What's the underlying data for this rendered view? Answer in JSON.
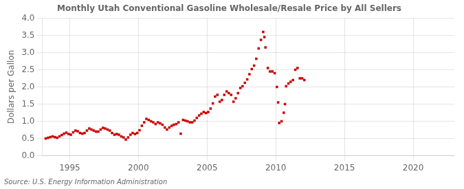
{
  "chart_data": {
    "type": "scatter",
    "title": "Monthly Utah Conventional Gasoline Wholesale/Resale Price by All Sellers",
    "ylabel": "Dollars per Gallon",
    "annotations": [
      "Source: U.S. Energy Information Administration"
    ],
    "color": "#cc0000",
    "marker": "square",
    "grid": true,
    "xlim": [
      1993.0,
      2023.0
    ],
    "ylim": [
      0.0,
      4.0
    ],
    "xticks": [
      1995,
      2000,
      2005,
      2010,
      2015,
      2020
    ],
    "yticks": [
      {
        "value": 0.0,
        "label": "0.0"
      },
      0.5,
      {
        "value": 1.0,
        "label": "1.0"
      },
      1.5,
      {
        "value": 2.0,
        "label": "2.0"
      },
      2.5,
      {
        "value": 3.0,
        "label": "3.0"
      },
      3.5,
      {
        "value": 4.0,
        "label": "4.0"
      }
    ],
    "x": [
      1993.25,
      1993.42,
      1993.58,
      1993.75,
      1993.92,
      1994.08,
      1994.25,
      1994.42,
      1994.58,
      1994.75,
      1994.92,
      1995.08,
      1995.25,
      1995.42,
      1995.58,
      1995.75,
      1995.92,
      1996.08,
      1996.25,
      1996.42,
      1996.58,
      1996.75,
      1996.92,
      1997.08,
      1997.25,
      1997.42,
      1997.58,
      1997.75,
      1997.92,
      1998.08,
      1998.25,
      1998.42,
      1998.58,
      1998.75,
      1998.92,
      1999.08,
      1999.25,
      1999.42,
      1999.58,
      1999.75,
      1999.92,
      2000.08,
      2000.25,
      2000.42,
      2000.58,
      2000.75,
      2000.92,
      2001.08,
      2001.25,
      2001.42,
      2001.58,
      2001.75,
      2001.92,
      2002.08,
      2002.25,
      2002.42,
      2002.58,
      2002.75,
      2002.92,
      2003.08,
      2003.25,
      2003.42,
      2003.58,
      2003.75,
      2003.92,
      2004.08,
      2004.25,
      2004.42,
      2004.58,
      2004.75,
      2004.92,
      2005.08,
      2005.25,
      2005.42,
      2005.58,
      2005.75,
      2005.92,
      2006.08,
      2006.25,
      2006.42,
      2006.58,
      2006.75,
      2006.92,
      2007.08,
      2007.25,
      2007.42,
      2007.58,
      2007.75,
      2007.92,
      2008.08,
      2008.25,
      2008.42,
      2008.58,
      2008.75,
      2008.92,
      2009.08,
      2009.17,
      2009.25,
      2009.42,
      2009.58,
      2009.75,
      2009.92,
      2010.08,
      2010.17,
      2010.25,
      2010.42,
      2010.58,
      2010.67,
      2010.75,
      2010.92,
      2011.08,
      2011.25,
      2011.42,
      2011.58,
      2011.75,
      2011.92,
      2012.08
    ],
    "values": [
      0.5,
      0.52,
      0.54,
      0.56,
      0.54,
      0.52,
      0.56,
      0.6,
      0.64,
      0.67,
      0.63,
      0.61,
      0.68,
      0.73,
      0.71,
      0.66,
      0.64,
      0.66,
      0.73,
      0.79,
      0.76,
      0.73,
      0.7,
      0.7,
      0.76,
      0.81,
      0.79,
      0.76,
      0.73,
      0.66,
      0.61,
      0.63,
      0.61,
      0.56,
      0.53,
      0.47,
      0.53,
      0.61,
      0.66,
      0.63,
      0.66,
      0.74,
      0.87,
      0.97,
      1.07,
      1.04,
      1.0,
      0.97,
      0.92,
      0.97,
      0.94,
      0.9,
      0.82,
      0.76,
      0.82,
      0.87,
      0.9,
      0.92,
      0.97,
      0.64,
      1.04,
      1.02,
      1.0,
      0.97,
      0.97,
      1.02,
      1.1,
      1.17,
      1.22,
      1.27,
      1.24,
      1.27,
      1.37,
      1.52,
      1.72,
      1.77,
      1.57,
      1.62,
      1.77,
      1.87,
      1.82,
      1.77,
      1.57,
      1.67,
      1.82,
      1.97,
      2.02,
      2.12,
      2.22,
      2.37,
      2.52,
      2.62,
      2.82,
      3.12,
      3.37,
      3.6,
      3.45,
      3.15,
      2.55,
      2.45,
      2.45,
      2.4,
      2.0,
      1.55,
      0.95,
      1.0,
      1.25,
      1.5,
      2.02,
      2.1,
      2.15,
      2.2,
      2.5,
      2.55,
      2.25,
      2.25,
      2.2
    ]
  }
}
